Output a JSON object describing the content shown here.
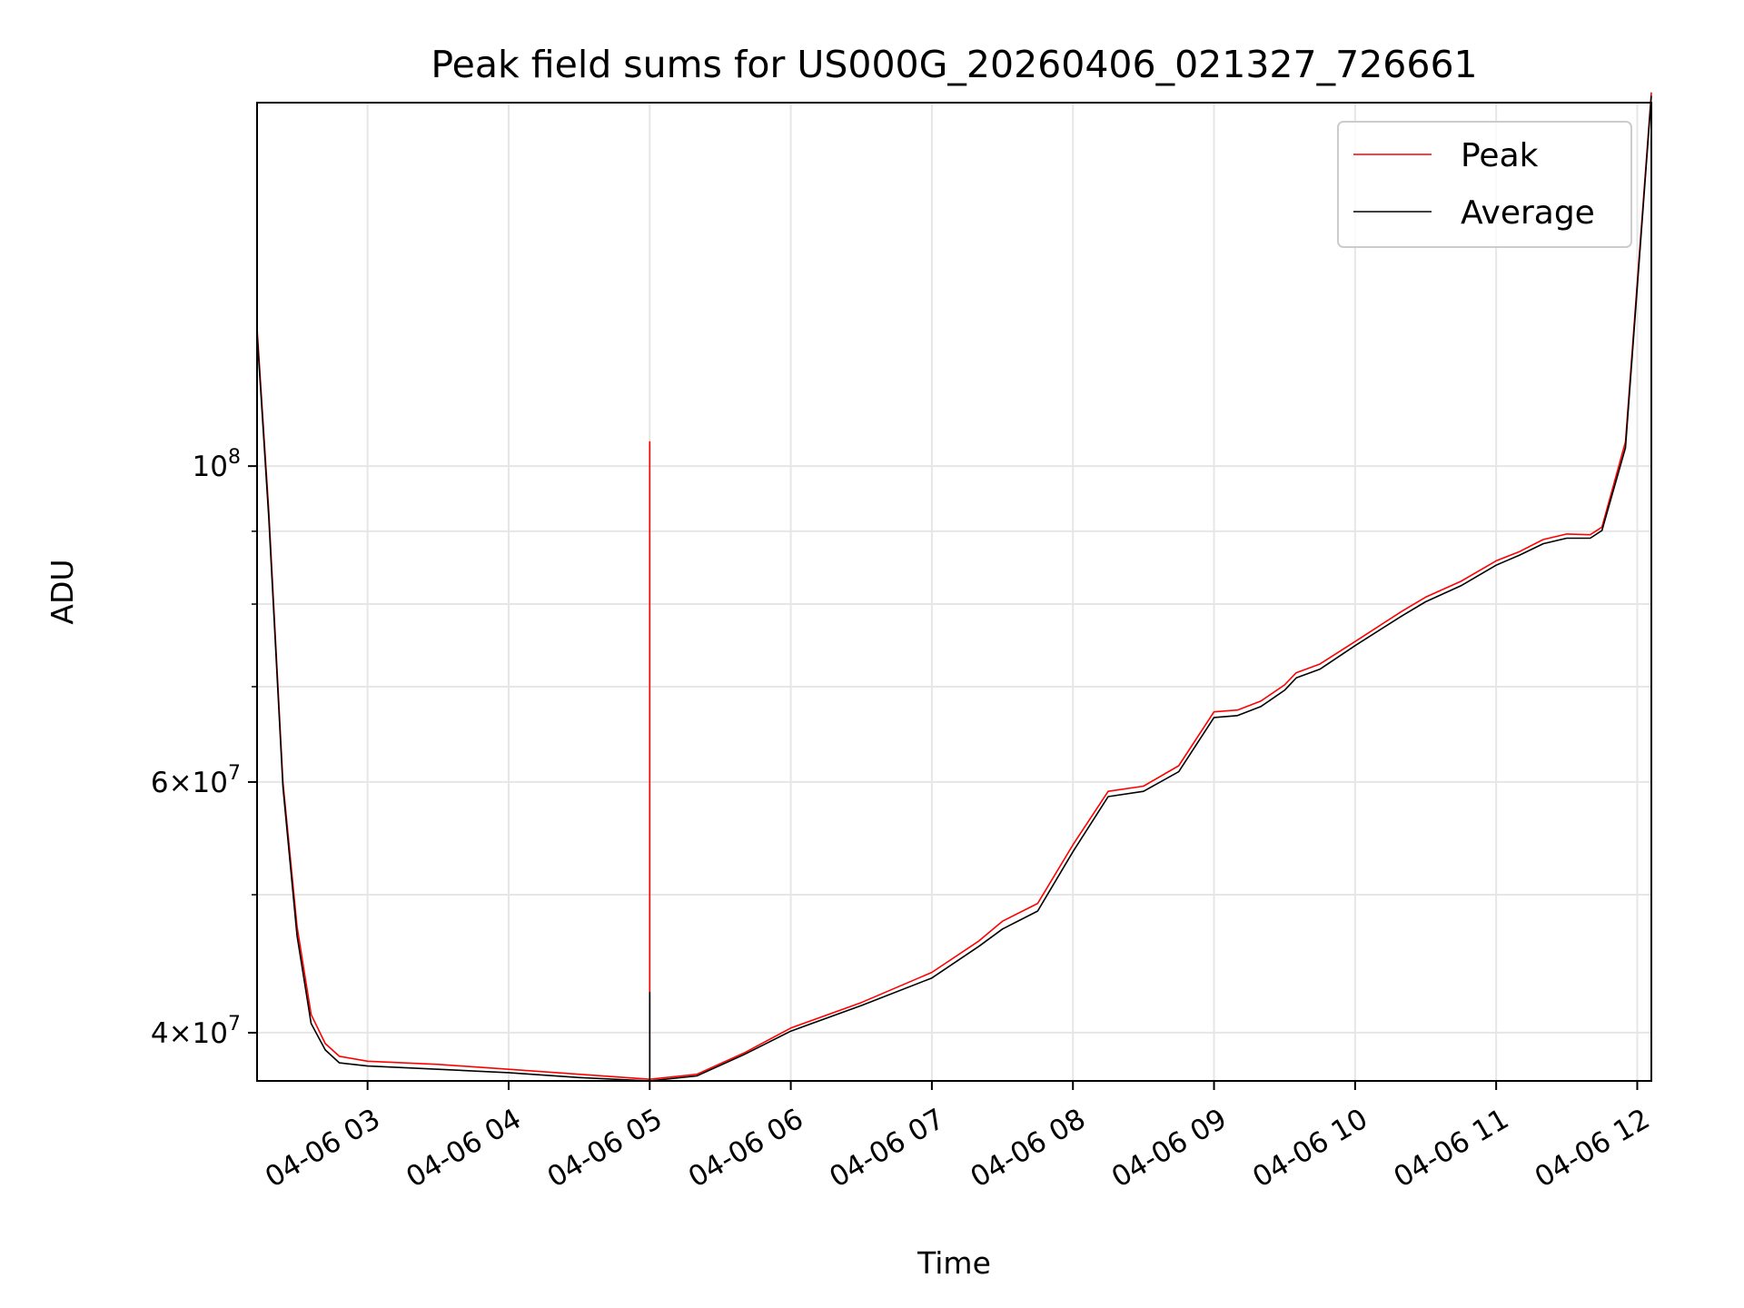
{
  "chart_data": {
    "type": "line",
    "title": "Peak field sums for US000G_20260406_021327_726661",
    "xlabel": "Time",
    "ylabel": "ADU",
    "y_scale": "log",
    "xlim": [
      "04-06 02:13",
      "04-06 12:06"
    ],
    "ylim": [
      37000000,
      180000000
    ],
    "x_ticks": [
      {
        "t": "04-06 03:00",
        "label": "04-06 03"
      },
      {
        "t": "04-06 04:00",
        "label": "04-06 04"
      },
      {
        "t": "04-06 05:00",
        "label": "04-06 05"
      },
      {
        "t": "04-06 06:00",
        "label": "04-06 06"
      },
      {
        "t": "04-06 07:00",
        "label": "04-06 07"
      },
      {
        "t": "04-06 08:00",
        "label": "04-06 08"
      },
      {
        "t": "04-06 09:00",
        "label": "04-06 09"
      },
      {
        "t": "04-06 10:00",
        "label": "04-06 10"
      },
      {
        "t": "04-06 11:00",
        "label": "04-06 11"
      },
      {
        "t": "04-06 12:00",
        "label": "04-06 12"
      }
    ],
    "y_major_ticks": [
      {
        "value": 100000000,
        "base": "10",
        "exp": "8",
        "mant": ""
      },
      {
        "value": 60000000,
        "base": "10",
        "exp": "7",
        "mant": "6"
      },
      {
        "value": 40000000,
        "base": "10",
        "exp": "7",
        "mant": "4"
      }
    ],
    "y_minor_ticks": [
      50000000,
      70000000,
      80000000,
      90000000
    ],
    "grid": true,
    "legend_position": "top-right",
    "series": [
      {
        "name": "Peak",
        "color": "#ff0000",
        "x": [
          "04-06 02:13",
          "04-06 02:18",
          "04-06 02:24",
          "04-06 02:30",
          "04-06 02:36",
          "04-06 02:42",
          "04-06 02:48",
          "04-06 03:00",
          "04-06 03:30",
          "04-06 04:00",
          "04-06 04:30",
          "04-06 05:00",
          "04-06 05:00",
          "04-06 05:00",
          "04-06 05:20",
          "04-06 05:40",
          "04-06 06:00",
          "04-06 06:30",
          "04-06 07:00",
          "04-06 07:20",
          "04-06 07:30",
          "04-06 07:45",
          "04-06 08:00",
          "04-06 08:15",
          "04-06 08:30",
          "04-06 08:45",
          "04-06 09:00",
          "04-06 09:10",
          "04-06 09:20",
          "04-06 09:30",
          "04-06 09:35",
          "04-06 09:45",
          "04-06 10:00",
          "04-06 10:20",
          "04-06 10:30",
          "04-06 10:45",
          "04-06 11:00",
          "04-06 11:10",
          "04-06 11:20",
          "04-06 11:30",
          "04-06 11:40",
          "04-06 11:45",
          "04-06 11:55",
          "04-06 12:06"
        ],
        "y": [
          125000000,
          93000000,
          60000000,
          47500000,
          41200000,
          39300000,
          38500000,
          38200000,
          38000000,
          37700000,
          37400000,
          37100000,
          104000000,
          37100000,
          37400000,
          38700000,
          40300000,
          42000000,
          44100000,
          46400000,
          47900000,
          49300000,
          54200000,
          59100000,
          59600000,
          61600000,
          67200000,
          67400000,
          68400000,
          70200000,
          71600000,
          72600000,
          75300000,
          79100000,
          80900000,
          83000000,
          85800000,
          87100000,
          88800000,
          89600000,
          89500000,
          90600000,
          104000000,
          183000000
        ]
      },
      {
        "name": "Average",
        "color": "#000000",
        "x": [
          "04-06 02:13",
          "04-06 02:18",
          "04-06 02:24",
          "04-06 02:30",
          "04-06 02:36",
          "04-06 02:42",
          "04-06 02:48",
          "04-06 03:00",
          "04-06 03:30",
          "04-06 04:00",
          "04-06 04:30",
          "04-06 05:00",
          "04-06 05:00",
          "04-06 05:00",
          "04-06 05:20",
          "04-06 05:40",
          "04-06 06:00",
          "04-06 06:30",
          "04-06 07:00",
          "04-06 07:20",
          "04-06 07:30",
          "04-06 07:45",
          "04-06 08:00",
          "04-06 08:15",
          "04-06 08:30",
          "04-06 08:45",
          "04-06 09:00",
          "04-06 09:10",
          "04-06 09:20",
          "04-06 09:30",
          "04-06 09:35",
          "04-06 09:45",
          "04-06 10:00",
          "04-06 10:20",
          "04-06 10:30",
          "04-06 10:45",
          "04-06 11:00",
          "04-06 11:10",
          "04-06 11:20",
          "04-06 11:30",
          "04-06 11:40",
          "04-06 11:45",
          "04-06 11:55",
          "04-06 12:06"
        ],
        "y": [
          124000000,
          92000000,
          59500000,
          46800000,
          40600000,
          38900000,
          38100000,
          37900000,
          37700000,
          37500000,
          37200000,
          37000000,
          42700000,
          37000000,
          37300000,
          38600000,
          40100000,
          41800000,
          43700000,
          46000000,
          47300000,
          48700000,
          53600000,
          58600000,
          59100000,
          61000000,
          66600000,
          66800000,
          67800000,
          69600000,
          71000000,
          72000000,
          74800000,
          78500000,
          80300000,
          82400000,
          85200000,
          86600000,
          88200000,
          89000000,
          89000000,
          90100000,
          103000000,
          182000000
        ]
      }
    ]
  }
}
